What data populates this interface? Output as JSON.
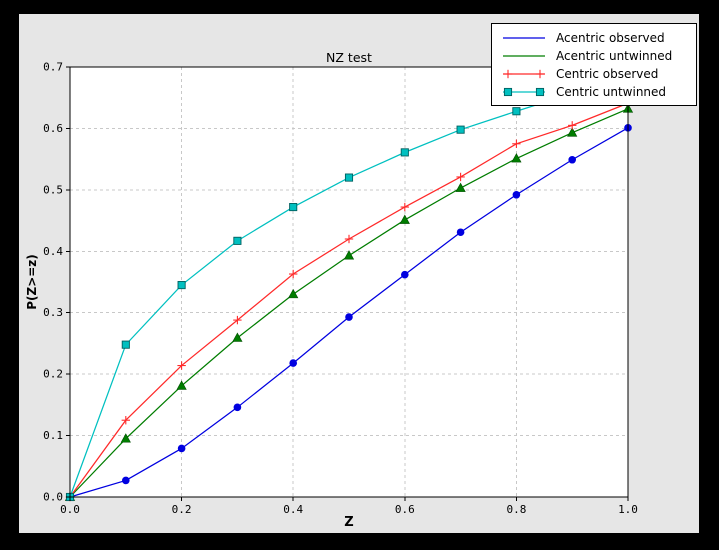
{
  "window": {
    "colors": {
      "background": "#000000",
      "figure_background": "#e6e6e6",
      "plot_background": "#ffffff",
      "grid": "#c8c8c8",
      "frame": "#000000"
    }
  },
  "chart_data": {
    "type": "line",
    "title": "NZ test",
    "xlabel": "Z",
    "ylabel": "P(Z>=z)",
    "xlim": [
      0.0,
      1.0
    ],
    "ylim": [
      0.0,
      0.7
    ],
    "xticks": [
      0.0,
      0.2,
      0.4,
      0.6,
      0.8,
      1.0
    ],
    "xtick_labels": [
      "0.0",
      "0.2",
      "0.4",
      "0.6",
      "0.8",
      "1.0"
    ],
    "yticks": [
      0.0,
      0.1,
      0.2,
      0.3,
      0.4,
      0.5,
      0.6,
      0.7
    ],
    "ytick_labels": [
      "0.0",
      "0.1",
      "0.2",
      "0.3",
      "0.4",
      "0.5",
      "0.6",
      "0.7"
    ],
    "grid": true,
    "legend_position": "upper right",
    "x": [
      0.0,
      0.1,
      0.2,
      0.3,
      0.4,
      0.5,
      0.6,
      0.7,
      0.8,
      0.9,
      1.0
    ],
    "series": [
      {
        "name": "Acentric observed",
        "color": "#0000e0",
        "marker": "circle",
        "marker_edge": "#0000e0",
        "legend_markers": 0,
        "values": [
          0.0,
          0.027,
          0.079,
          0.146,
          0.218,
          0.293,
          0.362,
          0.431,
          0.492,
          0.549,
          0.601
        ]
      },
      {
        "name": "Acentric untwinned",
        "color": "#007d00",
        "marker": "triangle",
        "marker_edge": "#004d00",
        "legend_markers": 0,
        "values": [
          0.0,
          0.095,
          0.181,
          0.259,
          0.33,
          0.393,
          0.451,
          0.503,
          0.551,
          0.593,
          0.632
        ]
      },
      {
        "name": "Centric observed",
        "color": "#ff2a2a",
        "marker": "plus",
        "marker_edge": "#ff2a2a",
        "legend_markers": 2,
        "values": [
          0.0,
          0.125,
          0.214,
          0.288,
          0.363,
          0.42,
          0.472,
          0.521,
          0.575,
          0.605,
          0.641
        ]
      },
      {
        "name": "Centric untwinned",
        "color": "#00c0c0",
        "marker": "square",
        "marker_edge": "#005f5f",
        "legend_markers": 2,
        "values": [
          0.0,
          0.248,
          0.345,
          0.417,
          0.472,
          0.52,
          0.561,
          0.598,
          0.628,
          0.657,
          0.683
        ]
      }
    ]
  }
}
